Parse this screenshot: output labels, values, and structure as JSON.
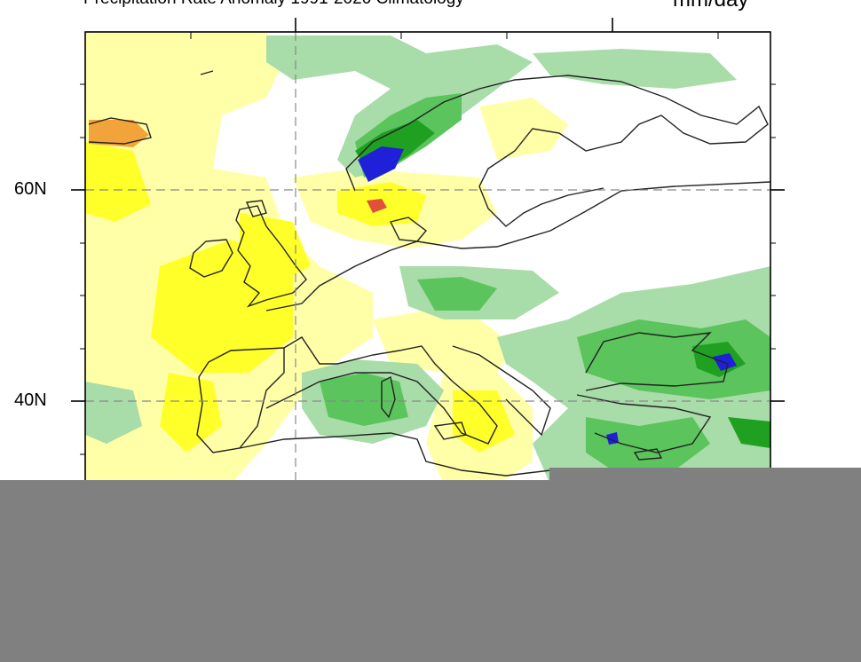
{
  "title": "Precipitation Rate Anomaly 1991-2020 Climatology",
  "units": "mm/day",
  "lat_labels": [
    "60N",
    "40N"
  ],
  "colors": {
    "light_yellow": "#ffffa8",
    "yellow": "#ffff2a",
    "orange": "#f2a43b",
    "red_orange": "#e0503a",
    "light_green": "#a8dca8",
    "green": "#5cc45c",
    "dark_green": "#20a020",
    "blue": "#2020d8",
    "redaction_gray": "#808080"
  }
}
